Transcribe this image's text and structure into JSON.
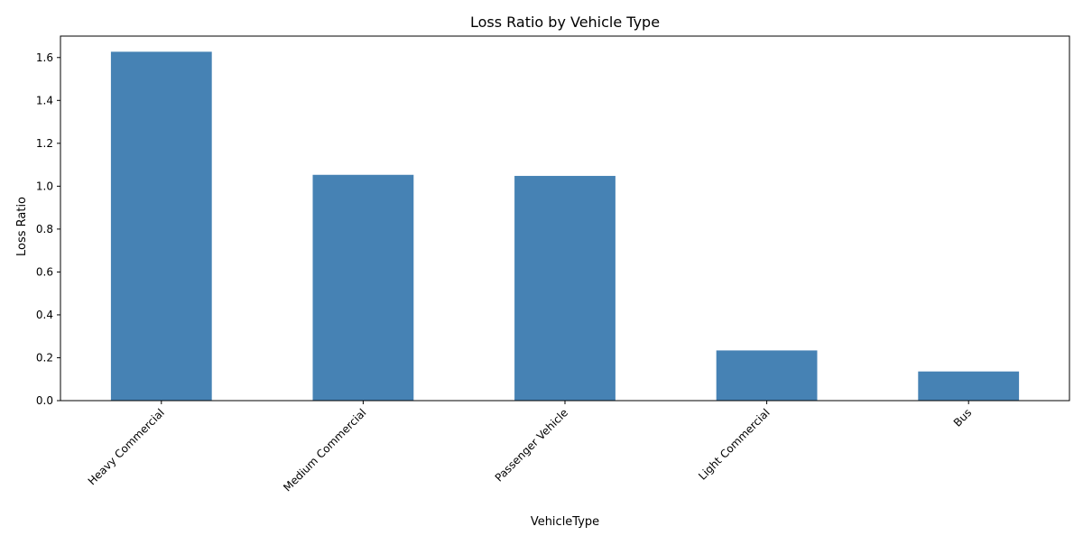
{
  "chart_data": {
    "type": "bar",
    "title": "Loss Ratio by Vehicle Type",
    "xlabel": "VehicleType",
    "ylabel": "Loss Ratio",
    "categories": [
      "Heavy Commercial",
      "Medium Commercial",
      "Passenger Vehicle",
      "Light Commercial",
      "Bus"
    ],
    "values": [
      1.627,
      1.053,
      1.048,
      0.234,
      0.136
    ],
    "ylim": [
      0,
      1.7
    ],
    "yticks": [
      0.0,
      0.2,
      0.4,
      0.6,
      0.8,
      1.0,
      1.2,
      1.4,
      1.6
    ],
    "ytick_labels": [
      "0.0",
      "0.2",
      "0.4",
      "0.6",
      "0.8",
      "1.0",
      "1.2",
      "1.4",
      "1.6"
    ],
    "bar_color": "#4682b4",
    "grid": false,
    "legend": "none",
    "xtick_rotation_deg": 45
  }
}
